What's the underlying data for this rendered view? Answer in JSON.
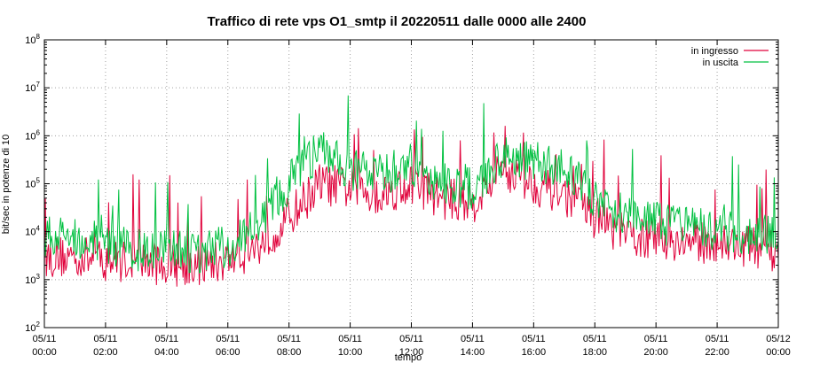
{
  "chart_data": {
    "type": "line",
    "title": "Traffico di rete vps O1_smtp il 20220511 dalle 0000 alle 2400",
    "xlabel": "tempo",
    "ylabel": "bit/sec in potenze di 10",
    "log_scale_y": true,
    "grid": true,
    "legend_position": "top-right",
    "ylim": [
      100,
      100000000
    ],
    "xlim_hours": [
      0,
      24
    ],
    "y_ticks": [
      {
        "base": "10",
        "exp": "2"
      },
      {
        "base": "10",
        "exp": "3"
      },
      {
        "base": "10",
        "exp": "4"
      },
      {
        "base": "10",
        "exp": "5"
      },
      {
        "base": "10",
        "exp": "6"
      },
      {
        "base": "10",
        "exp": "7"
      },
      {
        "base": "10",
        "exp": "8"
      }
    ],
    "x_ticks": [
      {
        "date": "05/11",
        "time": "00:00"
      },
      {
        "date": "05/11",
        "time": "02:00"
      },
      {
        "date": "05/11",
        "time": "04:00"
      },
      {
        "date": "05/11",
        "time": "06:00"
      },
      {
        "date": "05/11",
        "time": "08:00"
      },
      {
        "date": "05/11",
        "time": "10:00"
      },
      {
        "date": "05/11",
        "time": "12:00"
      },
      {
        "date": "05/11",
        "time": "14:00"
      },
      {
        "date": "05/11",
        "time": "16:00"
      },
      {
        "date": "05/11",
        "time": "18:00"
      },
      {
        "date": "05/11",
        "time": "20:00"
      },
      {
        "date": "05/11",
        "time": "22:00"
      },
      {
        "date": "05/12",
        "time": "00:00"
      }
    ],
    "series": [
      {
        "name": "in ingresso",
        "color": "#e0003a",
        "hours": [
          0,
          1,
          2,
          3,
          4,
          5,
          6,
          7,
          8,
          9,
          10,
          11,
          12,
          13,
          14,
          15,
          16,
          17,
          18,
          19,
          20,
          21,
          22,
          23,
          24
        ],
        "values": [
          3000,
          3000,
          2500,
          2500,
          2000,
          2000,
          2500,
          5000,
          20000,
          100000,
          80000,
          60000,
          100000,
          50000,
          40000,
          200000,
          100000,
          60000,
          20000,
          8000,
          7000,
          6000,
          6000,
          5000,
          4000
        ]
      },
      {
        "name": "in uscita",
        "color": "#00c040",
        "hours": [
          0,
          1,
          2,
          3,
          4,
          5,
          6,
          7,
          8,
          9,
          10,
          11,
          12,
          13,
          14,
          15,
          16,
          17,
          18,
          19,
          20,
          21,
          22,
          23,
          24
        ],
        "values": [
          8000,
          8000,
          6000,
          4000,
          4000,
          3500,
          5000,
          12000,
          100000,
          500000,
          200000,
          150000,
          250000,
          100000,
          80000,
          400000,
          300000,
          200000,
          50000,
          20000,
          15000,
          12000,
          10000,
          9000,
          9000
        ]
      }
    ]
  }
}
